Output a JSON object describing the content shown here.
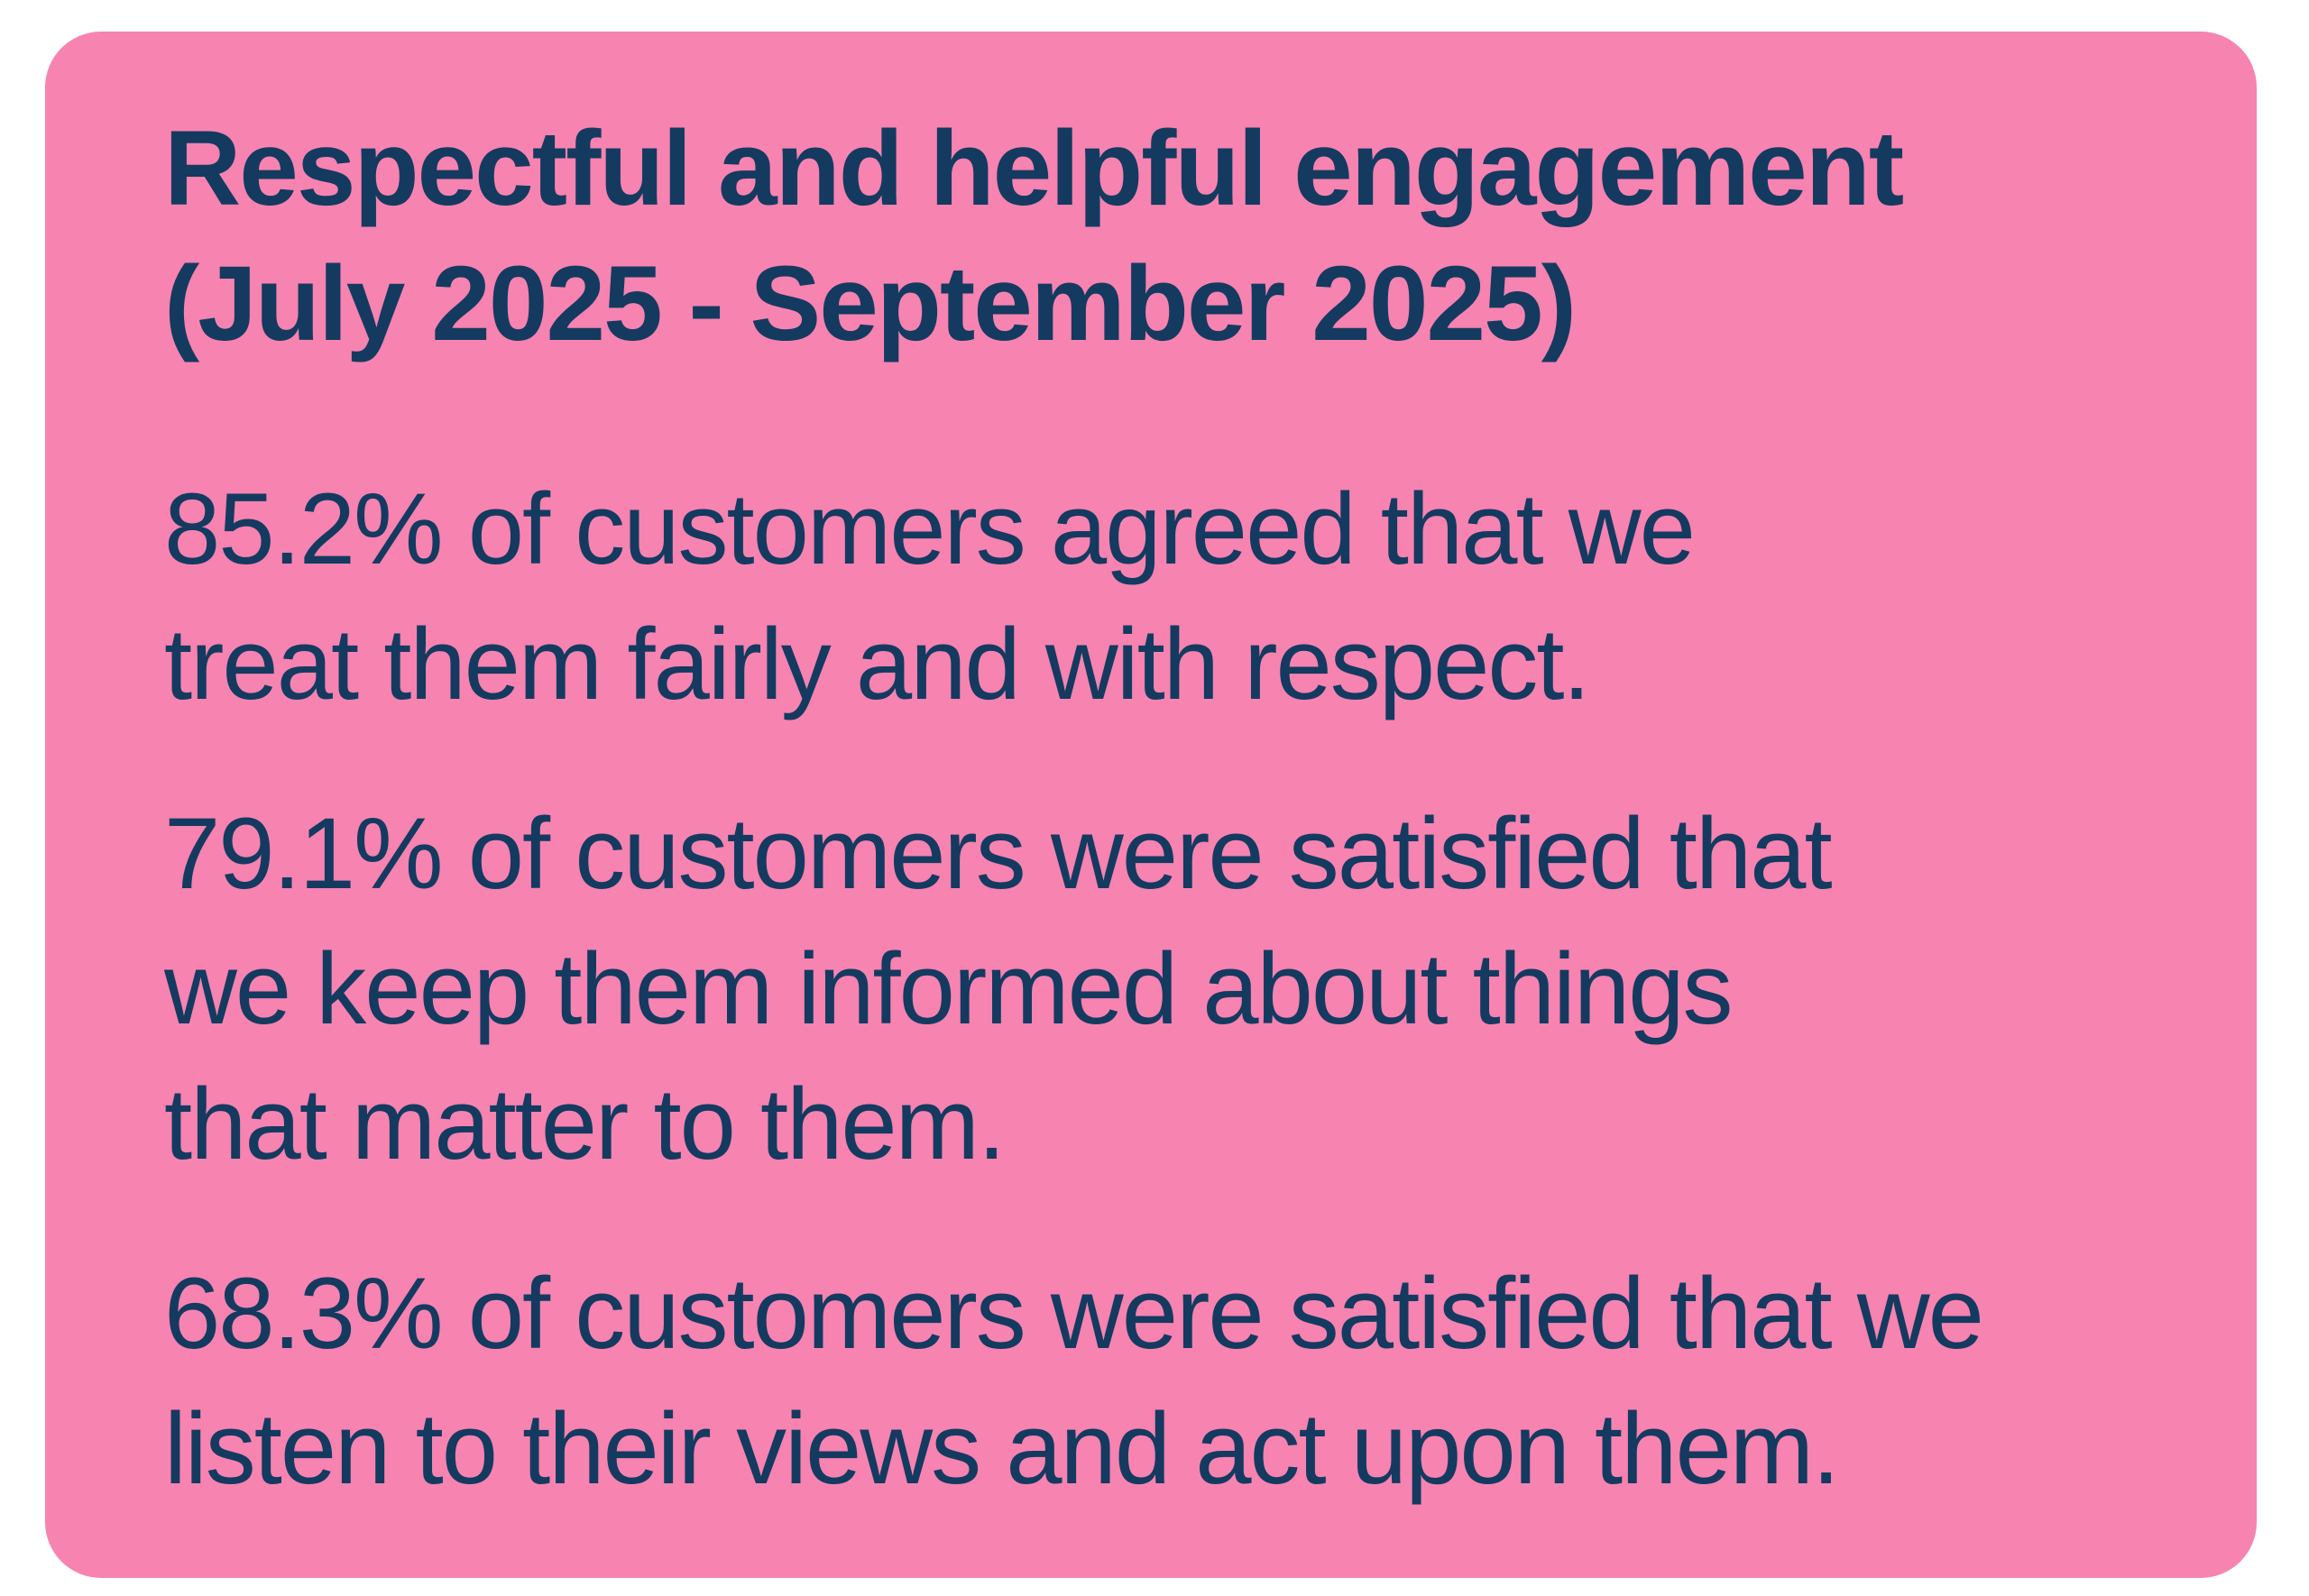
{
  "card": {
    "background_color": "#f783b0",
    "text_color": "#143a60",
    "title_lines": [
      "Respectful and helpful engagement",
      "(July 2025 - September 2025)"
    ],
    "period": "July 2025 - September 2025",
    "percentages": [
      "85.2%",
      "79.1%",
      "68.3%"
    ],
    "paragraphs": [
      {
        "lines": [
          "85.2% of customers agreed that we",
          "treat them fairly and with respect."
        ]
      },
      {
        "lines": [
          "79.1% of customers were satisfied that",
          "we keep them informed about things",
          "that matter to them."
        ]
      },
      {
        "lines": [
          "68.3% of customers were satisfied that we",
          "listen to their views and act upon them."
        ]
      }
    ]
  }
}
